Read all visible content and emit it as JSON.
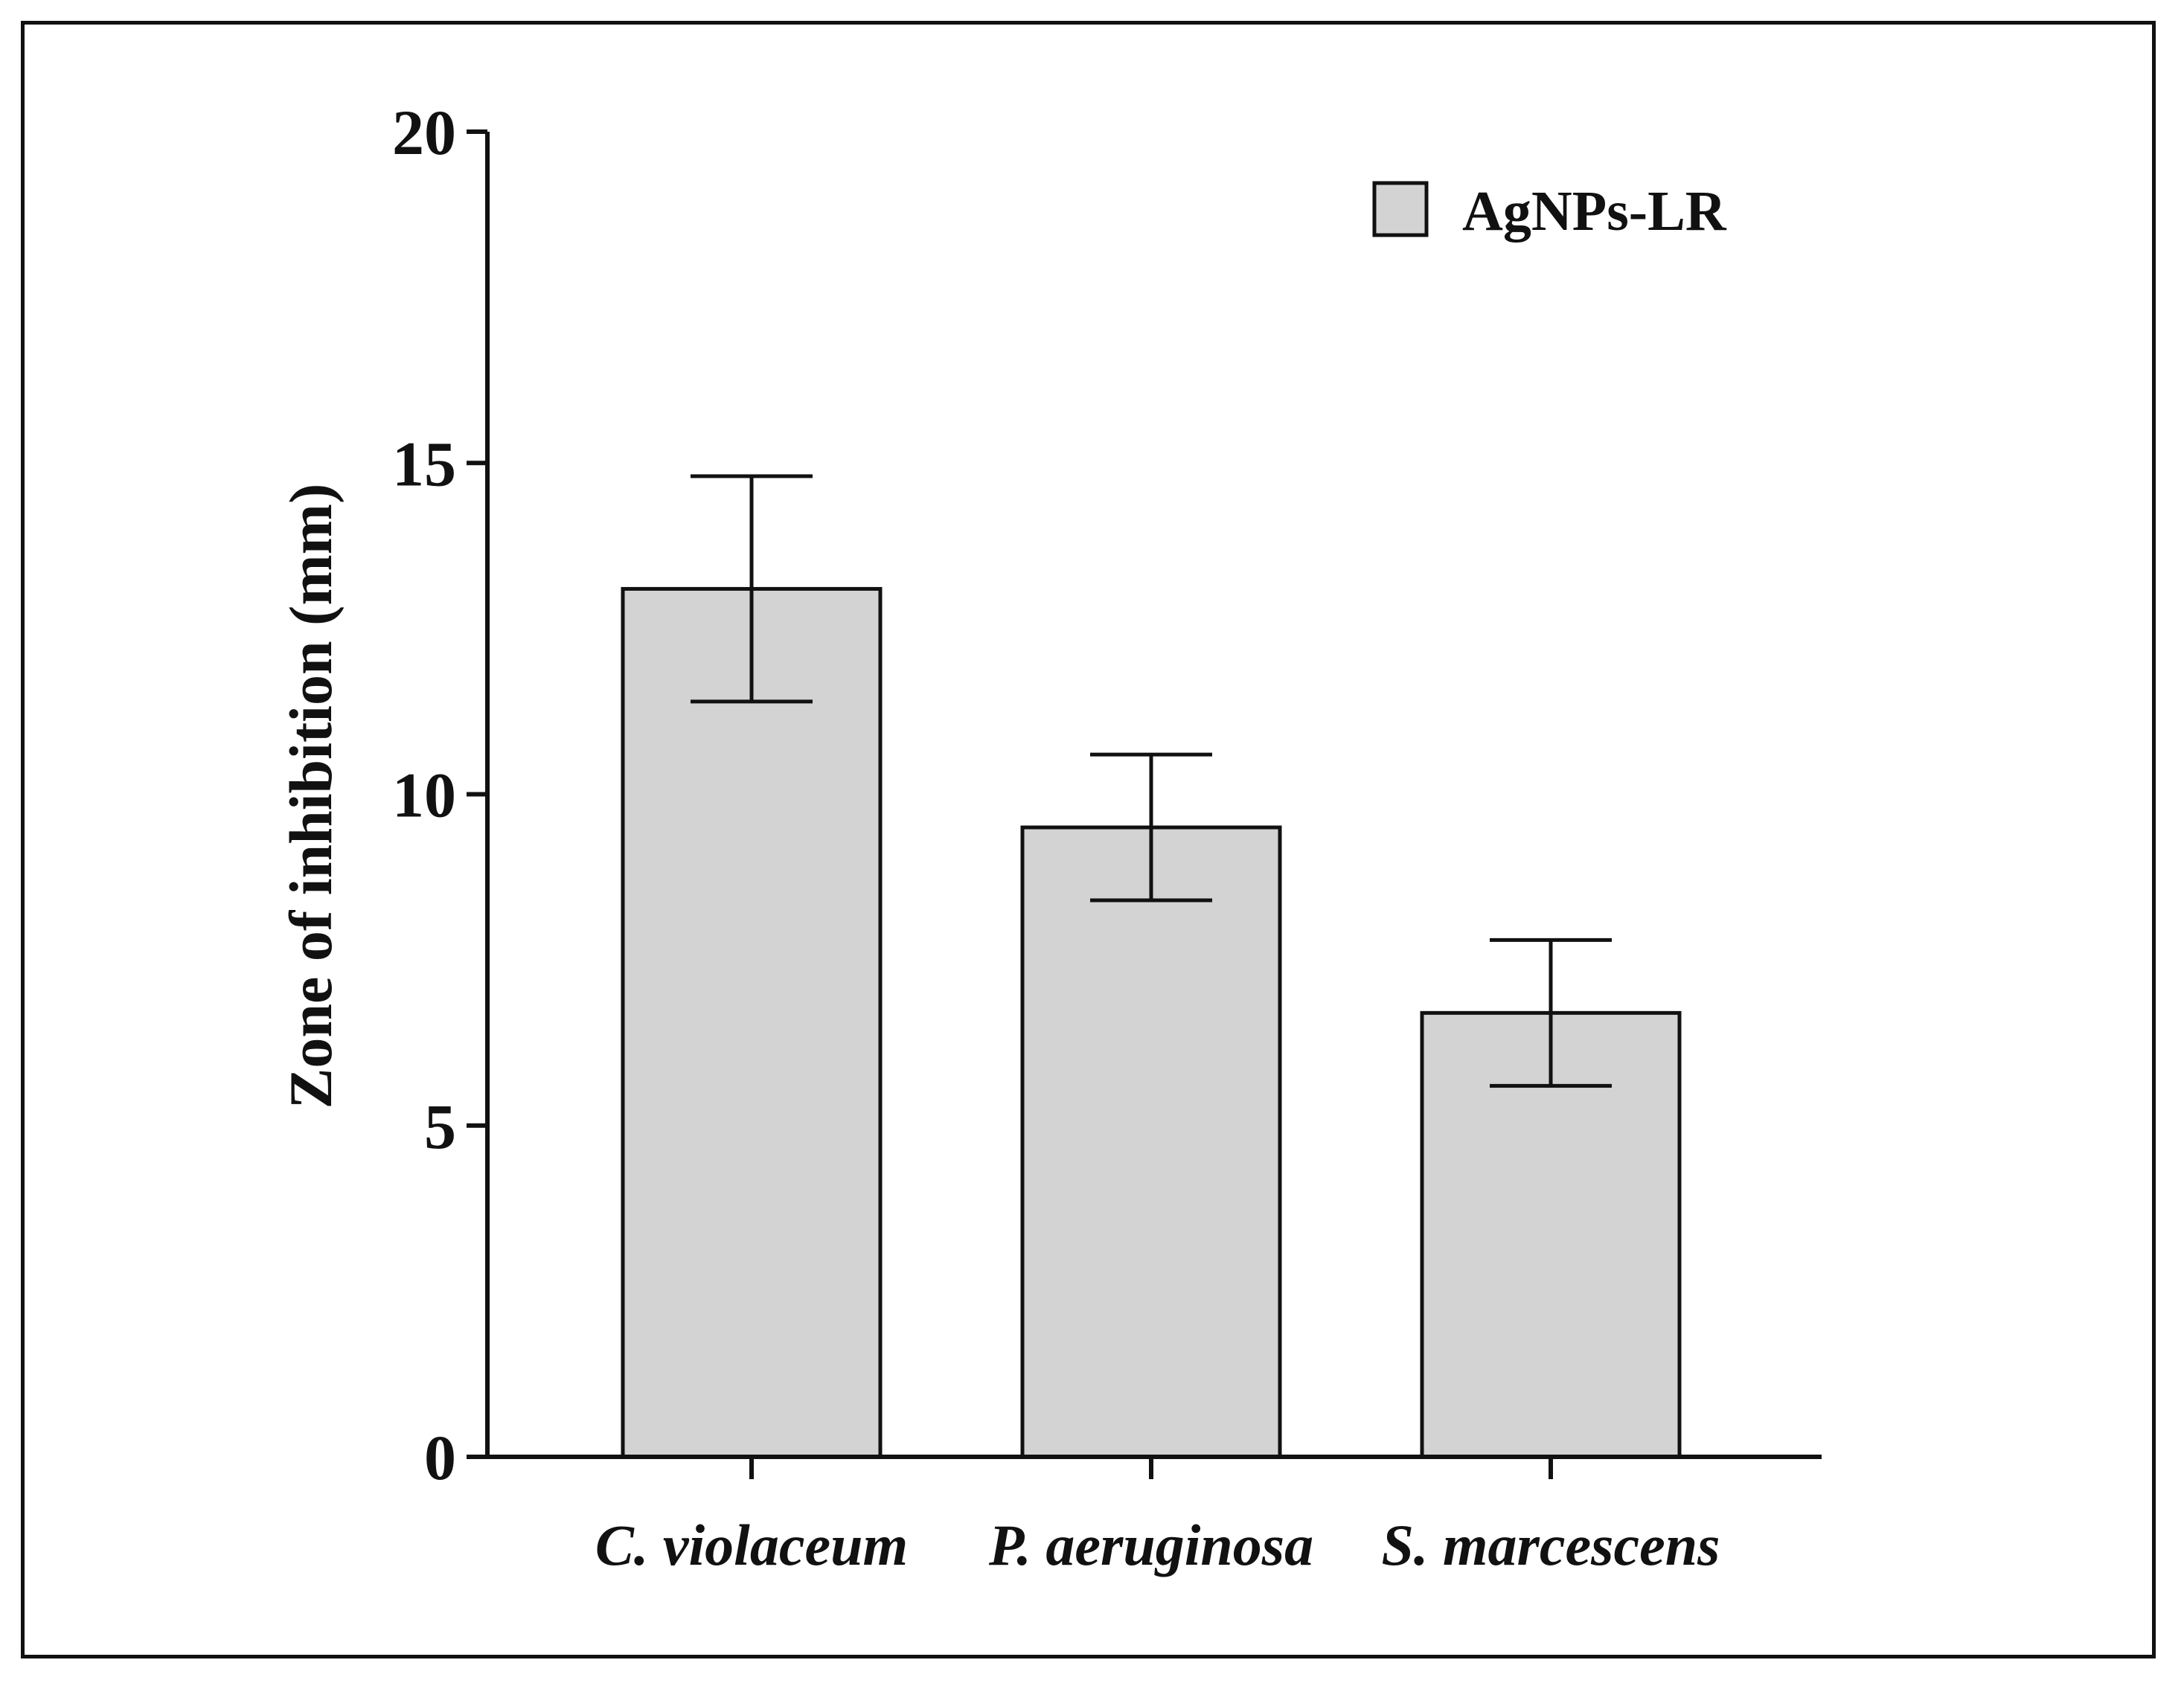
{
  "chart_data": {
    "type": "bar",
    "title": "",
    "xlabel": "",
    "ylabel": "Zone of inhibition (mm)",
    "categories": [
      "C. violaceum",
      "P. aeruginosa",
      "S. marcescens"
    ],
    "series": [
      {
        "name": "AgNPs-LR",
        "values": [
          13.1,
          9.5,
          6.7
        ],
        "error": [
          1.7,
          1.1,
          1.1
        ],
        "color": "#d3d3d3"
      }
    ],
    "ylim": [
      0,
      20
    ],
    "yticks": [
      "0",
      "5",
      "10",
      "15",
      "20"
    ],
    "ytick_values": [
      0,
      5,
      10,
      15,
      20
    ],
    "grid": false,
    "legend_position": "top-right"
  }
}
